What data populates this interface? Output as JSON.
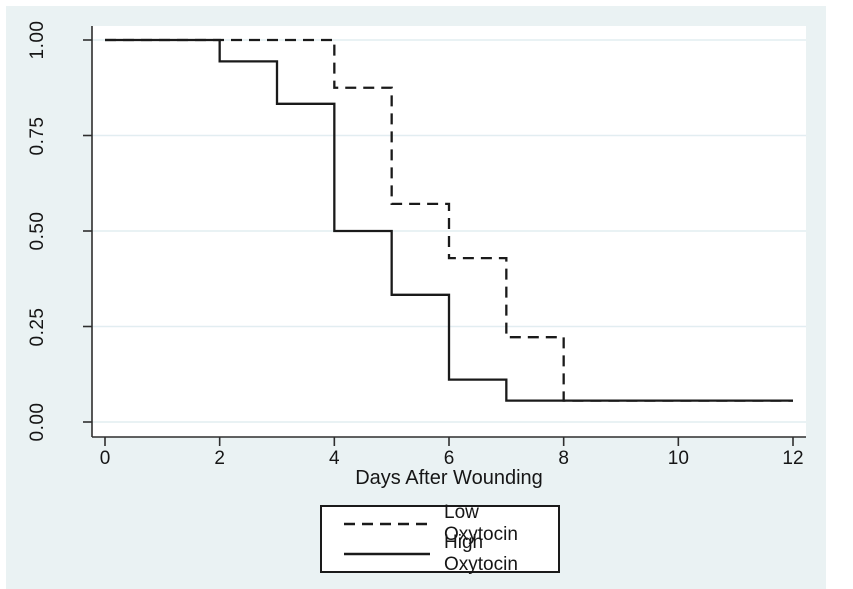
{
  "chart_data": {
    "type": "line",
    "subtype": "kaplan-meier-step-survival",
    "title": "",
    "xlabel": "Days After Wounding",
    "ylabel": "",
    "xlim": [
      0,
      12
    ],
    "ylim": [
      0.0,
      1.0
    ],
    "xticks": [
      0,
      2,
      4,
      6,
      8,
      10,
      12
    ],
    "yticks": [
      "0.00",
      "0.25",
      "0.50",
      "0.75",
      "1.00"
    ],
    "grid": "horizontal-gridlines-on",
    "legend_position": "bottom-center-boxed",
    "series": [
      {
        "name": "Low Oxytocin",
        "line_style": "dashed",
        "color": "#1a1a1a",
        "steps": [
          {
            "t": 0,
            "s": 1.0
          },
          {
            "t": 4,
            "s": 0.875
          },
          {
            "t": 5,
            "s": 0.571
          },
          {
            "t": 6,
            "s": 0.429
          },
          {
            "t": 7,
            "s": 0.222
          },
          {
            "t": 8,
            "s": 0.056
          }
        ],
        "end_time": 12
      },
      {
        "name": "High Oxytocin",
        "line_style": "solid",
        "color": "#1a1a1a",
        "steps": [
          {
            "t": 0,
            "s": 1.0
          },
          {
            "t": 2,
            "s": 0.944
          },
          {
            "t": 3,
            "s": 0.833
          },
          {
            "t": 4,
            "s": 0.5
          },
          {
            "t": 5,
            "s": 0.333
          },
          {
            "t": 6,
            "s": 0.111
          },
          {
            "t": 7,
            "s": 0.056
          }
        ],
        "end_time": 12
      }
    ],
    "colors": {
      "canvas_bg": "#eaf2f3",
      "plot_bg": "#ffffff",
      "gridline": "#e2edf1",
      "axis": "#2e2e2e",
      "curve": "#1a1a1a",
      "legend_bg": "#ffffff",
      "legend_border": "#1a1a1a"
    }
  }
}
